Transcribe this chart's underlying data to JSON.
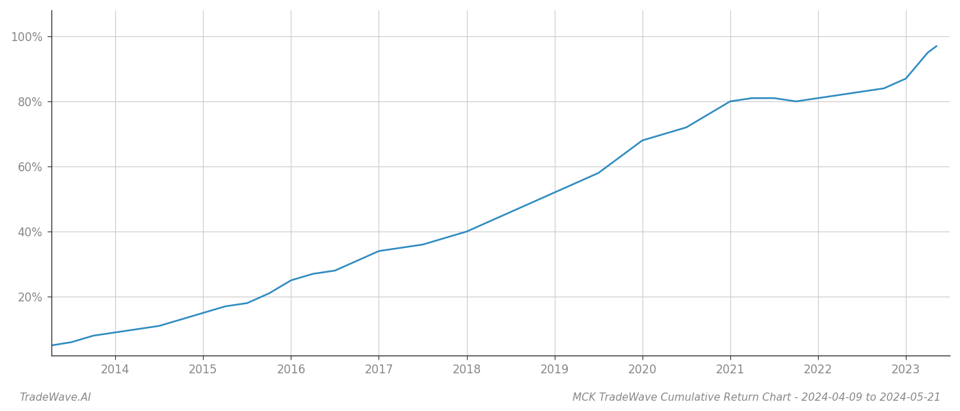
{
  "x_values": [
    2013.27,
    2013.5,
    2013.75,
    2014.0,
    2014.25,
    2014.5,
    2014.75,
    2015.0,
    2015.25,
    2015.5,
    2015.75,
    2016.0,
    2016.25,
    2016.5,
    2016.75,
    2017.0,
    2017.25,
    2017.5,
    2017.75,
    2018.0,
    2018.25,
    2018.5,
    2018.75,
    2019.0,
    2019.25,
    2019.5,
    2019.75,
    2020.0,
    2020.25,
    2020.5,
    2020.75,
    2021.0,
    2021.25,
    2021.5,
    2021.75,
    2022.0,
    2022.25,
    2022.5,
    2022.75,
    2023.0,
    2023.25,
    2023.35
  ],
  "y_values": [
    0.05,
    0.06,
    0.08,
    0.09,
    0.1,
    0.11,
    0.13,
    0.15,
    0.17,
    0.18,
    0.21,
    0.25,
    0.27,
    0.28,
    0.31,
    0.34,
    0.35,
    0.36,
    0.38,
    0.4,
    0.43,
    0.46,
    0.49,
    0.52,
    0.55,
    0.58,
    0.63,
    0.68,
    0.7,
    0.72,
    0.76,
    0.8,
    0.81,
    0.81,
    0.8,
    0.81,
    0.82,
    0.83,
    0.84,
    0.87,
    0.95,
    0.97
  ],
  "line_color": "#2e8bc0",
  "line_width": 1.8,
  "background_color": "#ffffff",
  "grid_color": "#cccccc",
  "title": "MCK TradeWave Cumulative Return Chart - 2024-04-09 to 2024-05-21",
  "xlabel": "",
  "ylabel": "",
  "ytick_labels": [
    "20%",
    "40%",
    "60%",
    "80%",
    "100%"
  ],
  "ytick_values": [
    0.2,
    0.4,
    0.6,
    0.8,
    1.0
  ],
  "xtick_labels": [
    "2014",
    "2015",
    "2016",
    "2017",
    "2018",
    "2019",
    "2020",
    "2021",
    "2022",
    "2023"
  ],
  "xtick_values": [
    2014,
    2015,
    2016,
    2017,
    2018,
    2019,
    2020,
    2021,
    2022,
    2023
  ],
  "xlim": [
    2013.27,
    2023.5
  ],
  "ylim": [
    0.02,
    1.08
  ],
  "watermark_left": "TradeWave.AI",
  "title_fontsize": 11,
  "tick_fontsize": 12,
  "watermark_fontsize": 11,
  "spine_color": "#333333"
}
